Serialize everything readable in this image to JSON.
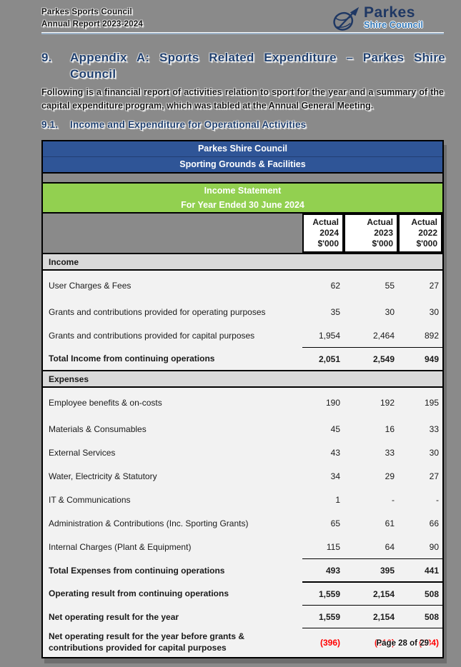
{
  "document": {
    "header": {
      "org": "Parkes Sports Council",
      "report": "Annual Report 2023-2024",
      "logo": {
        "name": "Parkes",
        "subtitle": "Shire Council",
        "icon": "telescope-dish-icon"
      }
    },
    "heading": {
      "number": "9.",
      "title": "Appendix A: Sports Related Expenditure – Parkes Shire Council"
    },
    "intro": "Following is a financial report of activities relation to sport for the year and a summary of the capital expenditure program, which was tabled at the Annual General Meeting.",
    "subheading": {
      "number": "9.1.",
      "title": "Income and Expenditure for Operational Activities"
    },
    "footer": {
      "page_label": "Page 28 of 29"
    }
  },
  "statement": {
    "banner": {
      "org": "Parkes Shire Council",
      "facility": "Sporting Grounds & Facilities"
    },
    "title_block": {
      "title": "Income Statement",
      "period": "For Year Ended 30 June 2024"
    },
    "columns": [
      {
        "label": "Actual",
        "year": "2024",
        "unit": "$'000"
      },
      {
        "label": "Actual",
        "year": "2023",
        "unit": "$'000"
      },
      {
        "label": "Actual",
        "year": "2022",
        "unit": "$'000"
      }
    ],
    "rows": [
      {
        "type": "section",
        "label": "Income"
      },
      {
        "type": "data",
        "label": "User Charges & Fees",
        "values": [
          "62",
          "55",
          "27"
        ],
        "tall": true
      },
      {
        "type": "data",
        "label": "Grants and contributions provided for operating purposes",
        "values": [
          "35",
          "30",
          "30"
        ]
      },
      {
        "type": "data",
        "label": "Grants and contributions provided for capital purposes",
        "values": [
          "1,954",
          "2,464",
          "892"
        ],
        "underline": "thin"
      },
      {
        "type": "total",
        "label": "Total Income from continuing operations",
        "values": [
          "2,051",
          "2,549",
          "949"
        ],
        "underline": "thick"
      },
      {
        "type": "section",
        "label": "Expenses"
      },
      {
        "type": "data",
        "label": "Employee benefits & on-costs",
        "values": [
          "190",
          "192",
          "195"
        ],
        "tall": true
      },
      {
        "type": "data",
        "label": "Materials & Consumables",
        "values": [
          "45",
          "16",
          "33"
        ]
      },
      {
        "type": "data",
        "label": "External Services",
        "values": [
          "43",
          "33",
          "30"
        ]
      },
      {
        "type": "data",
        "label": "Water, Electricity & Statutory",
        "values": [
          "34",
          "29",
          "27"
        ]
      },
      {
        "type": "data",
        "label": "IT & Communications",
        "values": [
          "1",
          "-",
          "-"
        ]
      },
      {
        "type": "data",
        "label": "Administration & Contributions (Inc. Sporting Grants)",
        "values": [
          "65",
          "61",
          "66"
        ]
      },
      {
        "type": "data",
        "label": "Internal Charges (Plant & Equipment)",
        "values": [
          "115",
          "64",
          "90"
        ],
        "underline": "thin"
      },
      {
        "type": "total",
        "label": "Total Expenses from continuing operations",
        "values": [
          "493",
          "395",
          "441"
        ],
        "underline": "thick"
      },
      {
        "type": "total",
        "label": "Operating result from continuing operations",
        "values": [
          "1,559",
          "2,154",
          "508"
        ],
        "underline": "thin"
      },
      {
        "type": "total",
        "label": "Net operating result for the year",
        "values": [
          "1,559",
          "2,154",
          "508"
        ],
        "underline": "thin"
      },
      {
        "type": "total",
        "label": "Net operating result for the year before grants & contributions provided for capital purposes",
        "values": [
          "(396)",
          "(310)",
          "(384)"
        ],
        "negative": true
      }
    ]
  },
  "colors": {
    "page_background": "#8a8a8a",
    "banner_blue": "#2f5597",
    "banner_green": "#92d050",
    "section_gray": "#d9d9d9",
    "body_row": "#f2f2f2",
    "heading_navy": "#1f3f6e",
    "logo_navy": "#1f3864",
    "logo_blue": "#2e74b5",
    "negative_red": "#ff0000"
  }
}
